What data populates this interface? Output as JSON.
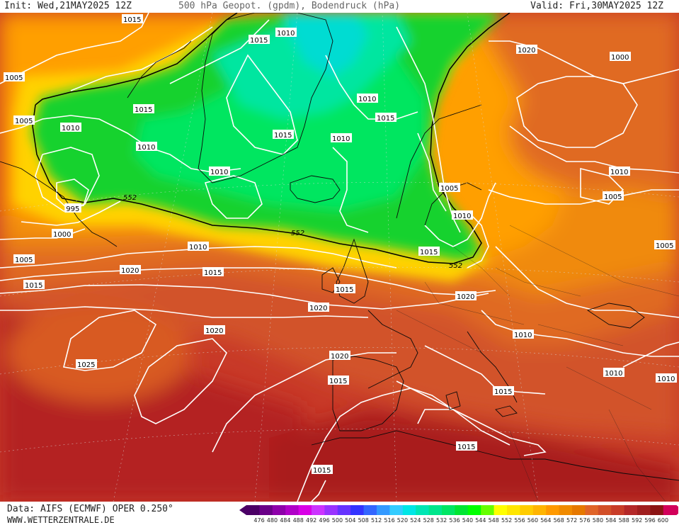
{
  "header": {
    "init": "Init: Wed,21MAY2025 12Z",
    "title": "500 hPa Geopot. (gpdm), Bodendruck (hPa)",
    "valid": "Valid: Fri,30MAY2025 12Z"
  },
  "footer": {
    "data_source": "Data: AIFS (ECMWF) OPER 0.250°",
    "website": "WWW.WETTERZENTRALE.DE"
  },
  "legend": {
    "ticks": [
      "476",
      "480",
      "484",
      "488",
      "492",
      "496",
      "500",
      "504",
      "508",
      "512",
      "516",
      "520",
      "524",
      "528",
      "532",
      "536",
      "540",
      "544",
      "548",
      "552",
      "556",
      "560",
      "564",
      "568",
      "572",
      "576",
      "580",
      "584",
      "588",
      "592",
      "596",
      "600"
    ],
    "colors": [
      "#4b0066",
      "#6a0088",
      "#8e00aa",
      "#b000c8",
      "#d800e6",
      "#cc33ff",
      "#9933ff",
      "#6633ff",
      "#3333ff",
      "#3366ff",
      "#3399ff",
      "#33ccff",
      "#00e6e6",
      "#00e6b4",
      "#00e68c",
      "#00e664",
      "#00e632",
      "#00ff00",
      "#66ff00",
      "#ffff00",
      "#ffe600",
      "#ffcc00",
      "#ffb400",
      "#ff9900",
      "#f08a00",
      "#e67800",
      "#e06428",
      "#d24f28",
      "#c83c28",
      "#b42828",
      "#a01e1e",
      "#8c1414",
      "#d2005a"
    ]
  },
  "contour_552_label": "552",
  "isobar_labels": [
    "1015",
    "1010",
    "1020",
    "1015",
    "1005",
    "1000",
    "1015",
    "1010",
    "1015",
    "1005",
    "1010",
    "1015",
    "1010",
    "1010",
    "552",
    "995",
    "1000",
    "1010",
    "1005",
    "1010",
    "1015",
    "1015",
    "1020",
    "1015",
    "1020",
    "1010",
    "1005",
    "1010",
    "1005",
    "1015",
    "1020",
    "1025",
    "1020",
    "1015",
    "1020",
    "1015",
    "1010",
    "1015",
    "1010",
    "1015",
    "1010",
    "1005"
  ]
}
